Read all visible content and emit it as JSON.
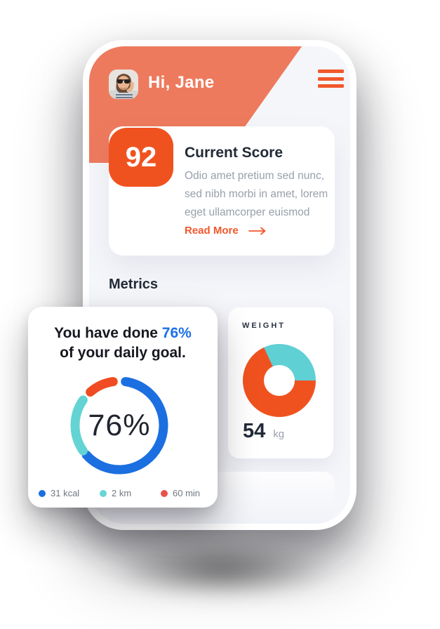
{
  "colors": {
    "header_salmon": "#ee7a5d",
    "accent_orange": "#f0521f",
    "link_orange": "#f1572b",
    "highlight_blue": "#1b6fe8",
    "teal": "#63d4d3",
    "alert_red": "#e8534e",
    "screen_bg": "#f5f6fa"
  },
  "header": {
    "greeting": "Hi, Jane",
    "avatar_icon": "profile-photo-avatar",
    "menu_icon": "hamburger-menu-icon"
  },
  "score_card": {
    "value": "92",
    "title": "Current Score",
    "description_lines": [
      "Odio amet pretium sed nunc,",
      "sed nibh morbi in amet, lorem",
      "eget ullamcorper euismod"
    ],
    "read_more_label": "Read More",
    "read_more_icon": "arrow-right-icon"
  },
  "metrics": {
    "section_title": "Metrics",
    "goal_card": {
      "title_prefix": "You have done ",
      "title_highlight": "76%",
      "title_line2": "of your daily goal.",
      "center_label": "76%",
      "legend": [
        {
          "label": "31 kcal",
          "color": "#1b6fe0"
        },
        {
          "label": "2 km",
          "color": "#67d6d8"
        },
        {
          "label": "60 min",
          "color": "#e8534e"
        }
      ],
      "chart_data": {
        "type": "ring-progress",
        "progress_pct": 76,
        "stroke_width": 13,
        "radius": 63,
        "segments": [
          {
            "name": "calories",
            "color": "#1b6fe0",
            "start_deg": 8,
            "end_deg": 228
          },
          {
            "name": "distance",
            "color": "#63d4d3",
            "start_deg": 235,
            "end_deg": 305
          },
          {
            "name": "time",
            "color": "#f04b22",
            "start_deg": 319,
            "end_deg": 352
          }
        ]
      }
    },
    "weight_card": {
      "label": "WEIGHT",
      "value": "54",
      "unit": "kg",
      "chart_data": {
        "type": "donut",
        "start_deg": -25,
        "segments": [
          {
            "name": "remaining",
            "color": "#5fd0d4",
            "sweep_deg": 115
          },
          {
            "name": "achieved",
            "color": "#f0521f",
            "sweep_deg": 245
          }
        ]
      }
    }
  }
}
